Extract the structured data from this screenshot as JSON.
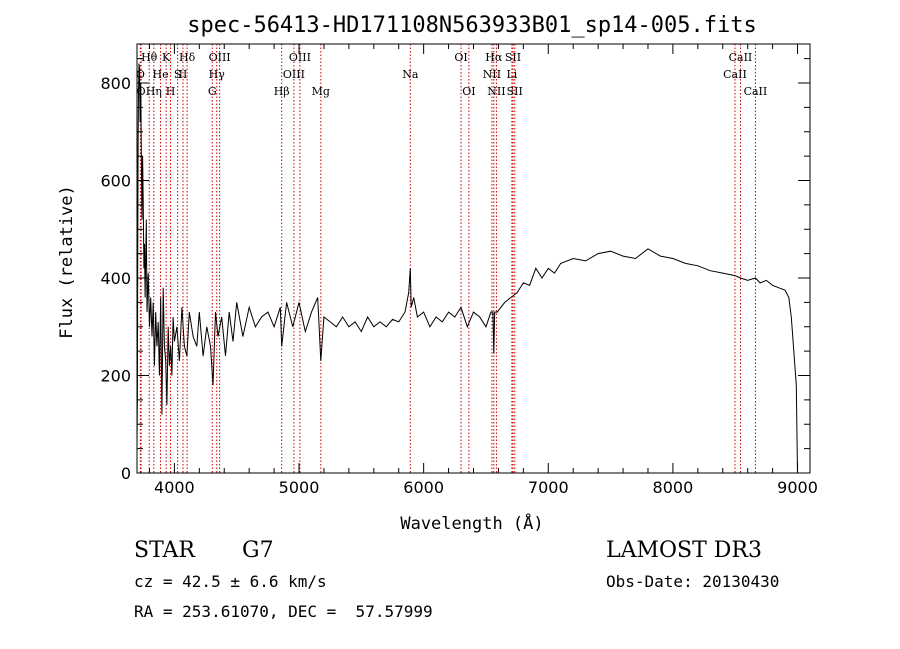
{
  "chart_data": {
    "type": "line",
    "title": "spec-56413-HD171108N563933B01_sp14-005.fits",
    "xlabel": "Wavelength (Å)",
    "ylabel": "Flux (relative)",
    "xlim": [
      3700,
      9100
    ],
    "ylim": [
      0,
      880
    ],
    "xticks": [
      4000,
      5000,
      6000,
      7000,
      8000,
      9000
    ],
    "yticks": [
      0,
      200,
      400,
      600,
      800
    ],
    "grid": false,
    "line_color": "#000000",
    "marker_color": "#cc0000",
    "series": [
      {
        "x": [
          3700,
          3703,
          3706,
          3709,
          3712,
          3716,
          3720,
          3725,
          3730,
          3735,
          3740,
          3745,
          3750,
          3755,
          3760,
          3765,
          3770,
          3775,
          3780,
          3790,
          3800,
          3810,
          3820,
          3830,
          3840,
          3850,
          3860,
          3870,
          3880,
          3890,
          3900,
          3910,
          3920,
          3930,
          3940,
          3950,
          3960,
          3970,
          3980,
          3990,
          4000,
          4020,
          4040,
          4060,
          4080,
          4100,
          4120,
          4150,
          4180,
          4200,
          4230,
          4260,
          4290,
          4310,
          4330,
          4350,
          4380,
          4410,
          4440,
          4470,
          4500,
          4550,
          4600,
          4650,
          4700,
          4750,
          4800,
          4850,
          4861,
          4900,
          4950,
          5000,
          5050,
          5100,
          5150,
          5175,
          5200,
          5250,
          5300,
          5350,
          5400,
          5450,
          5500,
          5550,
          5600,
          5650,
          5700,
          5750,
          5800,
          5850,
          5880,
          5893,
          5900,
          5920,
          5950,
          6000,
          6050,
          6100,
          6150,
          6200,
          6250,
          6300,
          6350,
          6400,
          6450,
          6500,
          6540,
          6556,
          6563,
          6570,
          6590,
          6620,
          6650,
          6700,
          6750,
          6800,
          6850,
          6900,
          6950,
          7000,
          7050,
          7100,
          7200,
          7300,
          7400,
          7500,
          7600,
          7700,
          7800,
          7900,
          8000,
          8100,
          8200,
          8300,
          8400,
          8498,
          8542,
          8600,
          8662,
          8700,
          8750,
          8800,
          8850,
          8900,
          8930,
          8950,
          8970,
          8990,
          9000
        ],
        "y": [
          60,
          160,
          420,
          680,
          780,
          840,
          830,
          720,
          800,
          640,
          520,
          650,
          560,
          420,
          470,
          360,
          440,
          520,
          330,
          410,
          300,
          360,
          280,
          350,
          220,
          330,
          260,
          310,
          200,
          360,
          120,
          380,
          260,
          230,
          140,
          300,
          220,
          260,
          200,
          320,
          270,
          300,
          230,
          340,
          260,
          240,
          330,
          280,
          260,
          330,
          240,
          300,
          260,
          180,
          330,
          280,
          320,
          240,
          330,
          270,
          350,
          280,
          340,
          300,
          320,
          330,
          300,
          340,
          260,
          350,
          300,
          350,
          290,
          330,
          360,
          230,
          320,
          310,
          300,
          320,
          300,
          310,
          290,
          320,
          300,
          310,
          300,
          315,
          310,
          330,
          370,
          420,
          340,
          360,
          320,
          330,
          300,
          320,
          310,
          330,
          320,
          340,
          300,
          330,
          320,
          300,
          330,
          330,
          245,
          330,
          330,
          340,
          350,
          360,
          370,
          390,
          385,
          420,
          400,
          420,
          410,
          430,
          440,
          435,
          450,
          455,
          445,
          440,
          460,
          445,
          440,
          430,
          425,
          415,
          410,
          405,
          400,
          395,
          400,
          390,
          395,
          385,
          380,
          375,
          360,
          320,
          250,
          180,
          0
        ]
      }
    ],
    "annotations": [
      {
        "label": "Hθ",
        "x": 3798,
        "row": 1
      },
      {
        "label": "O",
        "x": 3727,
        "row": 2
      },
      {
        "label": "O",
        "x": 3733,
        "row": 3
      },
      {
        "label": "Hη",
        "x": 3835,
        "row": 3
      },
      {
        "label": "He",
        "x": 3889,
        "row": 2
      },
      {
        "label": "K",
        "x": 3934,
        "row": 1
      },
      {
        "label": "H",
        "x": 3969,
        "row": 3
      },
      {
        "label": "S",
        "x": 4026,
        "row": 2
      },
      {
        "label": "II",
        "x": 4069,
        "row": 2
      },
      {
        "label": "Hδ",
        "x": 4102,
        "row": 1
      },
      {
        "label": "OIII",
        "x": 4363,
        "row": 1
      },
      {
        "label": "Hγ",
        "x": 4340,
        "row": 2
      },
      {
        "label": "G",
        "x": 4304,
        "row": 3
      },
      {
        "label": "Hβ",
        "x": 4861,
        "row": 3
      },
      {
        "label": "OIII",
        "x": 5007,
        "row": 1
      },
      {
        "label": "OIII",
        "x": 4959,
        "row": 2
      },
      {
        "label": "Mg",
        "x": 5175,
        "row": 3
      },
      {
        "label": "Na",
        "x": 5893,
        "row": 2
      },
      {
        "label": "OI",
        "x": 6300,
        "row": 1
      },
      {
        "label": "OI",
        "x": 6363,
        "row": 3
      },
      {
        "label": "Hα",
        "x": 6563,
        "row": 1
      },
      {
        "label": "NII",
        "x": 6548,
        "row": 2
      },
      {
        "label": "NII",
        "x": 6584,
        "row": 3
      },
      {
        "label": "SII",
        "x": 6717,
        "row": 1
      },
      {
        "label": "Li",
        "x": 6708,
        "row": 2
      },
      {
        "label": "SII",
        "x": 6731,
        "row": 3
      },
      {
        "label": "CaII",
        "x": 8542,
        "row": 1
      },
      {
        "label": "CaII",
        "x": 8498,
        "row": 2
      },
      {
        "label": "CaII",
        "x": 8662,
        "row": 3
      }
    ],
    "marker_lines": [
      3727,
      3733,
      3798,
      3835,
      3889,
      3934,
      3969,
      4026,
      4069,
      4102,
      4304,
      4340,
      4363,
      4861,
      4959,
      5007,
      5175,
      5893,
      6300,
      6363,
      6548,
      6563,
      6584,
      6708,
      6717,
      6731,
      8498,
      8542,
      8662
    ]
  },
  "info": {
    "object_class": "STAR",
    "subclass": "G7",
    "survey": "LAMOST DR3",
    "cz": "cz = 42.5 ± 6.6 km/s",
    "obs_date": "Obs-Date: 20130430",
    "coords": "RA = 253.61070, DEC =  57.57999"
  }
}
